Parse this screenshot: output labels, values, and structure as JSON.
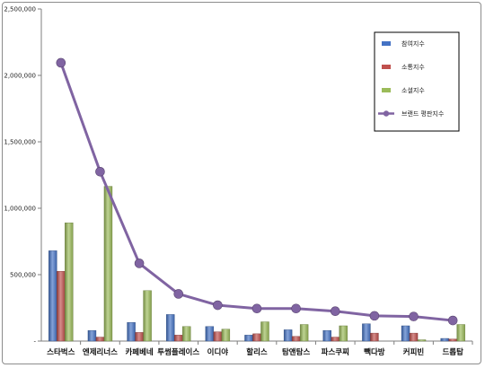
{
  "chart_data": {
    "type": "bar",
    "categories": [
      "스타벅스",
      "엔제리너스",
      "카페베네",
      "투썸플레이스",
      "이디야",
      "할리스",
      "탐앤탐스",
      "파스쿠찌",
      "빽다방",
      "커피빈",
      "드롭탑"
    ],
    "series": [
      {
        "name": "참여지수",
        "type": "bar",
        "color": "#4472c4",
        "values": [
          680000,
          80000,
          140000,
          200000,
          110000,
          45000,
          85000,
          80000,
          130000,
          115000,
          20000
        ]
      },
      {
        "name": "소통지수",
        "type": "bar",
        "color": "#c0504d",
        "values": [
          525000,
          30000,
          65000,
          45000,
          70000,
          55000,
          35000,
          30000,
          60000,
          60000,
          15000
        ]
      },
      {
        "name": "소셜지수",
        "type": "bar",
        "color": "#9bbb59",
        "values": [
          890000,
          1165000,
          380000,
          110000,
          90000,
          145000,
          125000,
          115000,
          0,
          10000,
          125000
        ]
      },
      {
        "name": "브랜드 평판지수",
        "type": "line",
        "color": "#8064a2",
        "values": [
          2095000,
          1275000,
          585000,
          355000,
          270000,
          245000,
          245000,
          225000,
          190000,
          185000,
          155000
        ]
      }
    ],
    "ylim": [
      0,
      2500000
    ],
    "yticks": [
      0,
      500000,
      1000000,
      1500000,
      2000000,
      2500000
    ],
    "ytick_labels": [
      "-",
      "500,000",
      "1,000,000",
      "1,500,000",
      "2,000,000",
      "2,500,000"
    ],
    "grid": false,
    "legend_position": "top-right"
  }
}
